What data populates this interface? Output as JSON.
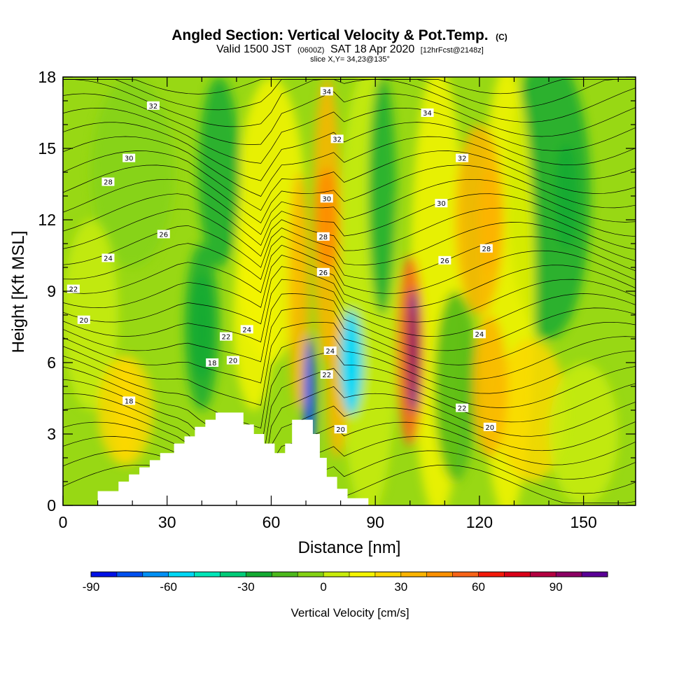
{
  "chart_data": {
    "type": "heatmap",
    "title": "Angled Section: Vertical Velocity & Pot.Temp.",
    "title_unit": "(C)",
    "subtitle_main": "Valid 1500 JST",
    "subtitle_zulu": "(0600Z)",
    "subtitle_date": "SAT 18 Apr 2020",
    "subtitle_fcst": "[12hrFcst@2148z]",
    "slice_label": "slice X,Y= 34,23@135°",
    "xlabel": "Distance [nm]",
    "ylabel": "Height [Kft MSL]",
    "xlim": [
      0,
      165
    ],
    "ylim": [
      0,
      18
    ],
    "x_ticks": [
      "0",
      "30",
      "60",
      "90",
      "120",
      "150"
    ],
    "y_ticks": [
      "0",
      "3",
      "6",
      "9",
      "12",
      "15",
      "18"
    ],
    "colorbar": {
      "label": "Vertical Velocity [cm/s]",
      "ticks": [
        "-90",
        "-60",
        "-30",
        "0",
        "30",
        "60",
        "90"
      ],
      "min": -90,
      "max": 110,
      "step": 10,
      "colors": [
        "#0010e6",
        "#0050f0",
        "#0090f5",
        "#00d8f5",
        "#00e6b8",
        "#00cc78",
        "#14aa32",
        "#4cb91c",
        "#84d214",
        "#c8ec0a",
        "#f5f500",
        "#fcd800",
        "#fcb400",
        "#fc9000",
        "#f86418",
        "#f41a0a",
        "#da0018",
        "#b40040",
        "#8c0064",
        "#5a0096"
      ]
    },
    "velocity_features": [
      {
        "x": 83,
        "y": 6.0,
        "w_cms": -55,
        "note": "updraft-core-negative"
      },
      {
        "x": 71,
        "y": 4.5,
        "w_cms": -80
      },
      {
        "x": 101,
        "y": 6.5,
        "w_cms": 100
      },
      {
        "x": 76,
        "y": 12.0,
        "w_cms": 40
      },
      {
        "x": 123,
        "y": 12.0,
        "w_cms": 30
      },
      {
        "x": 18,
        "y": 4.0,
        "w_cms": 25
      },
      {
        "x": 40,
        "y": 7.5,
        "w_cms": -30
      },
      {
        "x": 145,
        "y": 13.0,
        "w_cms": -25
      }
    ],
    "theta_contour_labels": [
      {
        "text": "32",
        "x": 26,
        "y": 16.8
      },
      {
        "text": "34",
        "x": 76,
        "y": 17.4
      },
      {
        "text": "34",
        "x": 105,
        "y": 16.5
      },
      {
        "text": "30",
        "x": 19,
        "y": 14.6
      },
      {
        "text": "32",
        "x": 79,
        "y": 15.4
      },
      {
        "text": "32",
        "x": 115,
        "y": 14.6
      },
      {
        "text": "28",
        "x": 13,
        "y": 13.6
      },
      {
        "text": "30",
        "x": 76,
        "y": 12.9
      },
      {
        "text": "30",
        "x": 109,
        "y": 12.7
      },
      {
        "text": "26",
        "x": 29,
        "y": 11.4
      },
      {
        "text": "28",
        "x": 75,
        "y": 11.3
      },
      {
        "text": "28",
        "x": 122,
        "y": 10.8
      },
      {
        "text": "26",
        "x": 110,
        "y": 10.3
      },
      {
        "text": "24",
        "x": 13,
        "y": 10.4
      },
      {
        "text": "26",
        "x": 75,
        "y": 9.8
      },
      {
        "text": "22",
        "x": 3,
        "y": 9.1
      },
      {
        "text": "20",
        "x": 6,
        "y": 7.8
      },
      {
        "text": "24",
        "x": 53,
        "y": 7.4
      },
      {
        "text": "22",
        "x": 47,
        "y": 7.1
      },
      {
        "text": "24",
        "x": 77,
        "y": 6.5
      },
      {
        "text": "24",
        "x": 120,
        "y": 7.2
      },
      {
        "text": "18",
        "x": 43,
        "y": 6.0
      },
      {
        "text": "20",
        "x": 49,
        "y": 6.1
      },
      {
        "text": "22",
        "x": 76,
        "y": 5.5
      },
      {
        "text": "18",
        "x": 19,
        "y": 4.4
      },
      {
        "text": "22",
        "x": 115,
        "y": 4.1
      },
      {
        "text": "20",
        "x": 80,
        "y": 3.2
      },
      {
        "text": "20",
        "x": 123,
        "y": 3.3
      }
    ],
    "terrain": [
      [
        10,
        0.6
      ],
      [
        16,
        0.6
      ],
      [
        16,
        1.0
      ],
      [
        19,
        1.0
      ],
      [
        19,
        1.3
      ],
      [
        22,
        1.3
      ],
      [
        22,
        1.6
      ],
      [
        25,
        1.6
      ],
      [
        25,
        1.9
      ],
      [
        28,
        1.9
      ],
      [
        28,
        2.2
      ],
      [
        32,
        2.2
      ],
      [
        32,
        2.6
      ],
      [
        35,
        2.6
      ],
      [
        35,
        2.9
      ],
      [
        38,
        2.9
      ],
      [
        38,
        3.3
      ],
      [
        41,
        3.3
      ],
      [
        41,
        3.6
      ],
      [
        44,
        3.6
      ],
      [
        44,
        3.9
      ],
      [
        52,
        3.9
      ],
      [
        52,
        3.4
      ],
      [
        55,
        3.4
      ],
      [
        55,
        3.0
      ],
      [
        58,
        3.0
      ],
      [
        58,
        2.6
      ],
      [
        61,
        2.6
      ],
      [
        61,
        2.2
      ],
      [
        64,
        2.2
      ],
      [
        64,
        2.6
      ],
      [
        66,
        2.6
      ],
      [
        66,
        3.6
      ],
      [
        72,
        3.6
      ],
      [
        72,
        3.0
      ],
      [
        74,
        3.0
      ],
      [
        74,
        2.0
      ],
      [
        76,
        2.0
      ],
      [
        76,
        1.2
      ],
      [
        79,
        1.2
      ],
      [
        79,
        0.7
      ],
      [
        82,
        0.7
      ],
      [
        82,
        0.3
      ],
      [
        88,
        0.3
      ],
      [
        88,
        0
      ]
    ]
  }
}
